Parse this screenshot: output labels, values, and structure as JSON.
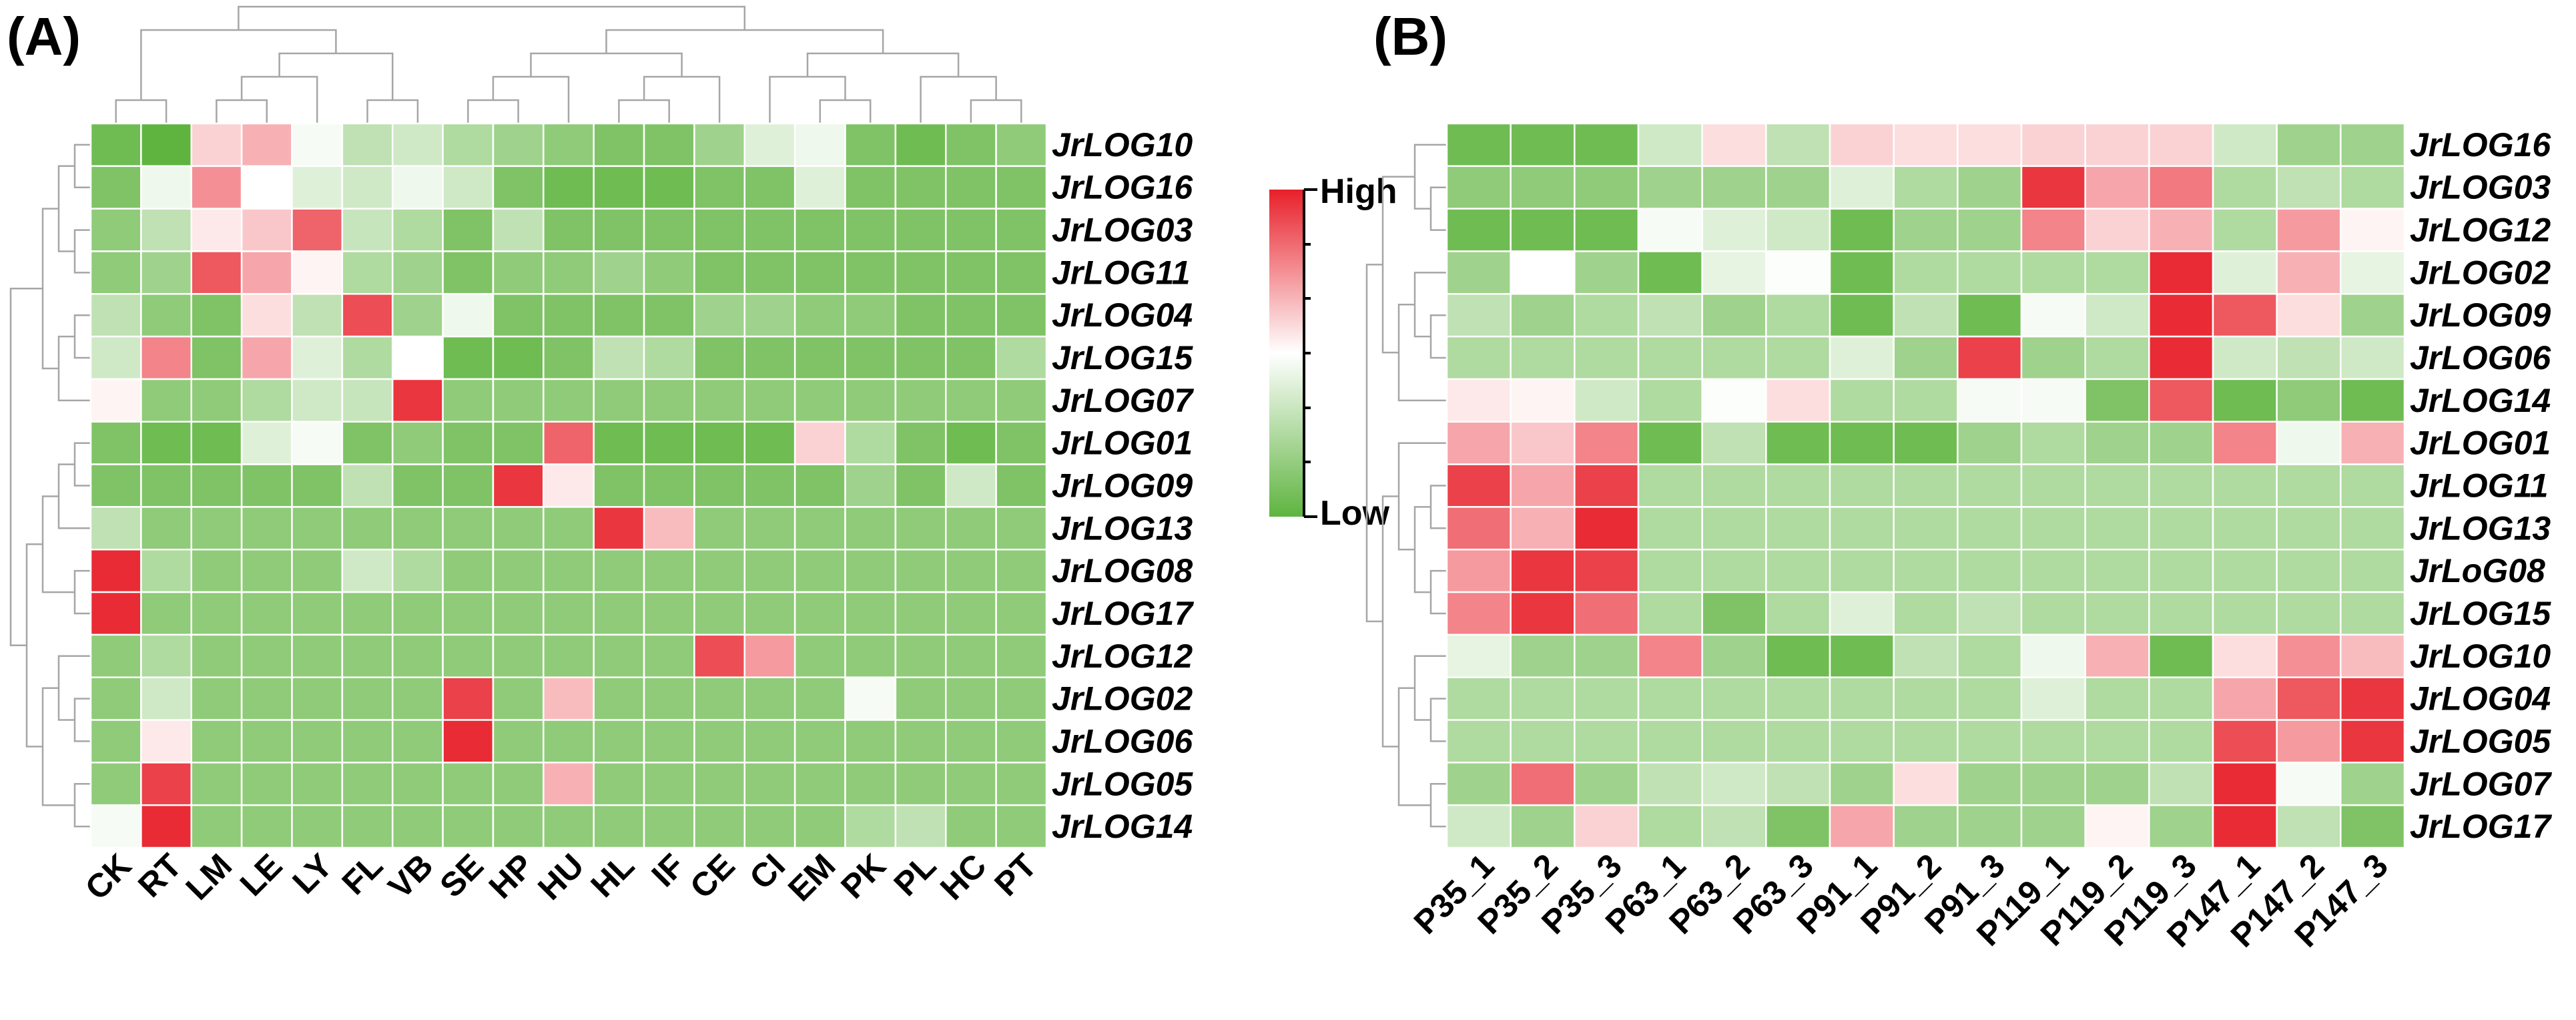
{
  "colors": {
    "low": "#5fb440",
    "mid": "#ffffff",
    "high": "#e8202a",
    "grid": "#ffffff",
    "dendrogram": "#a6a6a6"
  },
  "legend": {
    "high_label": "High",
    "low_label": "Low",
    "scale_min": -1,
    "scale_max": 1
  },
  "chart_data": [
    {
      "type": "heatmap",
      "panel": "(A)",
      "title": "",
      "columns": [
        "CK",
        "RT",
        "LM",
        "LE",
        "LY",
        "FL",
        "VB",
        "SE",
        "HP",
        "HU",
        "HL",
        "IF",
        "CE",
        "CI",
        "EM",
        "PK",
        "PL",
        "HC",
        "PT"
      ],
      "rows": [
        "JrLOG10",
        "JrLOG16",
        "JrLOG03",
        "JrLOG11",
        "JrLOG04",
        "JrLOG15",
        "JrLOG07",
        "JrLOG01",
        "JrLOG09",
        "JrLOG13",
        "JrLOG08",
        "JrLOG17",
        "JrLOG12",
        "JrLOG02",
        "JrLOG06",
        "JrLOG05",
        "JrLOG14"
      ],
      "values": [
        [
          -0.9,
          -1.0,
          0.2,
          0.35,
          -0.05,
          -0.4,
          -0.3,
          -0.5,
          -0.6,
          -0.7,
          -0.8,
          -0.8,
          -0.6,
          -0.2,
          -0.1,
          -0.8,
          -0.9,
          -0.8,
          -0.7
        ],
        [
          -0.8,
          -0.1,
          0.5,
          0.0,
          -0.2,
          -0.3,
          -0.1,
          -0.3,
          -0.8,
          -0.9,
          -0.9,
          -0.9,
          -0.8,
          -0.8,
          -0.2,
          -0.8,
          -0.8,
          -0.8,
          -0.8
        ],
        [
          -0.7,
          -0.4,
          0.1,
          0.25,
          0.7,
          -0.35,
          -0.5,
          -0.8,
          -0.4,
          -0.8,
          -0.8,
          -0.8,
          -0.8,
          -0.8,
          -0.8,
          -0.8,
          -0.8,
          -0.8,
          -0.8
        ],
        [
          -0.7,
          -0.6,
          0.75,
          0.4,
          0.05,
          -0.5,
          -0.6,
          -0.8,
          -0.7,
          -0.7,
          -0.6,
          -0.7,
          -0.8,
          -0.8,
          -0.8,
          -0.8,
          -0.8,
          -0.8,
          -0.8
        ],
        [
          -0.4,
          -0.7,
          -0.8,
          0.15,
          -0.4,
          0.8,
          -0.6,
          -0.1,
          -0.8,
          -0.8,
          -0.8,
          -0.8,
          -0.6,
          -0.6,
          -0.7,
          -0.7,
          -0.8,
          -0.8,
          -0.8
        ],
        [
          -0.3,
          0.55,
          -0.8,
          0.4,
          -0.2,
          -0.5,
          0.0,
          -0.9,
          -0.9,
          -0.8,
          -0.4,
          -0.5,
          -0.8,
          -0.8,
          -0.8,
          -0.8,
          -0.8,
          -0.8,
          -0.5
        ],
        [
          0.05,
          -0.7,
          -0.7,
          -0.5,
          -0.3,
          -0.35,
          0.9,
          -0.7,
          -0.7,
          -0.7,
          -0.7,
          -0.7,
          -0.7,
          -0.7,
          -0.7,
          -0.7,
          -0.7,
          -0.7,
          -0.7
        ],
        [
          -0.8,
          -0.9,
          -0.9,
          -0.2,
          -0.05,
          -0.8,
          -0.7,
          -0.8,
          -0.8,
          0.7,
          -0.9,
          -0.9,
          -0.9,
          -0.9,
          0.2,
          -0.5,
          -0.8,
          -0.9,
          -0.8
        ],
        [
          -0.8,
          -0.8,
          -0.8,
          -0.8,
          -0.8,
          -0.4,
          -0.8,
          -0.8,
          0.9,
          0.1,
          -0.8,
          -0.8,
          -0.8,
          -0.8,
          -0.8,
          -0.6,
          -0.8,
          -0.3,
          -0.8
        ],
        [
          -0.4,
          -0.7,
          -0.7,
          -0.7,
          -0.7,
          -0.7,
          -0.7,
          -0.7,
          -0.7,
          -0.7,
          0.9,
          0.3,
          -0.7,
          -0.7,
          -0.7,
          -0.7,
          -0.7,
          -0.7,
          -0.7
        ],
        [
          0.95,
          -0.5,
          -0.7,
          -0.7,
          -0.7,
          -0.3,
          -0.5,
          -0.7,
          -0.7,
          -0.7,
          -0.7,
          -0.7,
          -0.7,
          -0.7,
          -0.7,
          -0.7,
          -0.7,
          -0.7,
          -0.7
        ],
        [
          0.95,
          -0.7,
          -0.7,
          -0.7,
          -0.7,
          -0.7,
          -0.7,
          -0.7,
          -0.7,
          -0.7,
          -0.7,
          -0.7,
          -0.7,
          -0.7,
          -0.7,
          -0.7,
          -0.7,
          -0.7,
          -0.7
        ],
        [
          -0.7,
          -0.5,
          -0.7,
          -0.7,
          -0.7,
          -0.7,
          -0.7,
          -0.7,
          -0.7,
          -0.7,
          -0.7,
          -0.7,
          0.8,
          0.45,
          -0.7,
          -0.7,
          -0.7,
          -0.7,
          -0.7
        ],
        [
          -0.7,
          -0.3,
          -0.7,
          -0.7,
          -0.7,
          -0.7,
          -0.7,
          0.85,
          -0.7,
          0.3,
          -0.7,
          -0.7,
          -0.7,
          -0.7,
          -0.7,
          -0.05,
          -0.7,
          -0.7,
          -0.7
        ],
        [
          -0.7,
          0.1,
          -0.7,
          -0.7,
          -0.7,
          -0.7,
          -0.7,
          0.95,
          -0.7,
          -0.7,
          -0.7,
          -0.7,
          -0.7,
          -0.7,
          -0.7,
          -0.7,
          -0.7,
          -0.7,
          -0.7
        ],
        [
          -0.7,
          0.85,
          -0.7,
          -0.7,
          -0.7,
          -0.7,
          -0.7,
          -0.7,
          -0.7,
          0.35,
          -0.7,
          -0.7,
          -0.7,
          -0.7,
          -0.7,
          -0.7,
          -0.7,
          -0.7,
          -0.7
        ],
        [
          -0.05,
          0.95,
          -0.7,
          -0.7,
          -0.7,
          -0.7,
          -0.7,
          -0.7,
          -0.7,
          -0.7,
          -0.7,
          -0.7,
          -0.7,
          -0.7,
          -0.7,
          -0.5,
          -0.4,
          -0.7,
          -0.7
        ]
      ]
    },
    {
      "type": "heatmap",
      "panel": "(B)",
      "title": "",
      "columns": [
        "P35_1",
        "P35_2",
        "P35_3",
        "P63_1",
        "P63_2",
        "P63_3",
        "P91_1",
        "P91_2",
        "P91_3",
        "P119_1",
        "P119_2",
        "P119_3",
        "P147_1",
        "P147_2",
        "P147_3"
      ],
      "rows": [
        "JrLOG16",
        "JrLOG03",
        "JrLOG12",
        "JrLOG02",
        "JrLOG09",
        "JrLOG06",
        "JrLOG14",
        "JrLOG01",
        "JrLOG11",
        "JrLOG13",
        "JrLoG08",
        "JrLOG15",
        "JrLOG10",
        "JrLOG04",
        "JrLOG05",
        "JrLOG07",
        "JrLOG17"
      ],
      "values": [
        [
          -0.9,
          -0.9,
          -0.9,
          -0.3,
          0.15,
          -0.4,
          0.2,
          0.15,
          0.15,
          0.2,
          0.2,
          0.2,
          -0.3,
          -0.6,
          -0.6
        ],
        [
          -0.7,
          -0.7,
          -0.7,
          -0.6,
          -0.6,
          -0.6,
          -0.2,
          -0.5,
          -0.6,
          0.9,
          0.4,
          0.6,
          -0.5,
          -0.4,
          -0.5
        ],
        [
          -0.9,
          -0.9,
          -0.9,
          -0.05,
          -0.2,
          -0.3,
          -0.9,
          -0.6,
          -0.6,
          0.55,
          0.2,
          0.35,
          -0.5,
          0.45,
          0.05
        ],
        [
          -0.6,
          0.0,
          -0.6,
          -0.9,
          -0.15,
          -0.02,
          -0.9,
          -0.5,
          -0.5,
          -0.5,
          -0.5,
          0.95,
          -0.2,
          0.35,
          -0.15
        ],
        [
          -0.4,
          -0.6,
          -0.5,
          -0.4,
          -0.6,
          -0.5,
          -0.9,
          -0.4,
          -0.9,
          -0.05,
          -0.3,
          0.95,
          0.75,
          0.15,
          -0.6
        ],
        [
          -0.5,
          -0.5,
          -0.5,
          -0.5,
          -0.5,
          -0.5,
          -0.2,
          -0.6,
          0.85,
          -0.6,
          -0.5,
          0.95,
          -0.3,
          -0.4,
          -0.3
        ],
        [
          0.1,
          0.05,
          -0.3,
          -0.5,
          -0.02,
          0.15,
          -0.5,
          -0.5,
          -0.05,
          -0.05,
          -0.8,
          0.75,
          -0.9,
          -0.7,
          -0.9
        ],
        [
          0.4,
          0.25,
          0.55,
          -0.9,
          -0.4,
          -0.9,
          -0.9,
          -0.9,
          -0.6,
          -0.5,
          -0.6,
          -0.6,
          0.55,
          -0.1,
          0.35
        ],
        [
          0.85,
          0.4,
          0.85,
          -0.5,
          -0.5,
          -0.5,
          -0.5,
          -0.5,
          -0.5,
          -0.5,
          -0.5,
          -0.5,
          -0.5,
          -0.5,
          -0.5
        ],
        [
          0.65,
          0.35,
          0.95,
          -0.5,
          -0.5,
          -0.5,
          -0.5,
          -0.5,
          -0.5,
          -0.5,
          -0.5,
          -0.5,
          -0.5,
          -0.5,
          -0.5
        ],
        [
          0.45,
          0.9,
          0.85,
          -0.5,
          -0.5,
          -0.5,
          -0.5,
          -0.5,
          -0.5,
          -0.5,
          -0.5,
          -0.5,
          -0.5,
          -0.5,
          -0.5
        ],
        [
          0.55,
          0.9,
          0.65,
          -0.5,
          -0.8,
          -0.5,
          -0.2,
          -0.5,
          -0.4,
          -0.5,
          -0.5,
          -0.5,
          -0.5,
          -0.5,
          -0.5
        ],
        [
          -0.15,
          -0.6,
          -0.6,
          0.55,
          -0.6,
          -0.9,
          -0.9,
          -0.4,
          -0.5,
          -0.1,
          0.35,
          -0.9,
          0.15,
          0.5,
          0.3
        ],
        [
          -0.5,
          -0.5,
          -0.5,
          -0.5,
          -0.5,
          -0.5,
          -0.5,
          -0.5,
          -0.5,
          -0.2,
          -0.5,
          -0.5,
          0.4,
          0.75,
          0.9
        ],
        [
          -0.5,
          -0.5,
          -0.5,
          -0.5,
          -0.5,
          -0.5,
          -0.5,
          -0.5,
          -0.5,
          -0.5,
          -0.5,
          -0.5,
          0.8,
          0.45,
          0.9
        ],
        [
          -0.6,
          0.65,
          -0.6,
          -0.4,
          -0.3,
          -0.4,
          -0.6,
          0.15,
          -0.6,
          -0.6,
          -0.6,
          -0.4,
          0.95,
          -0.05,
          -0.6
        ],
        [
          -0.3,
          -0.6,
          0.2,
          -0.5,
          -0.4,
          -0.8,
          0.4,
          -0.6,
          -0.6,
          -0.6,
          0.05,
          -0.6,
          0.95,
          -0.4,
          -0.8
        ]
      ]
    }
  ]
}
